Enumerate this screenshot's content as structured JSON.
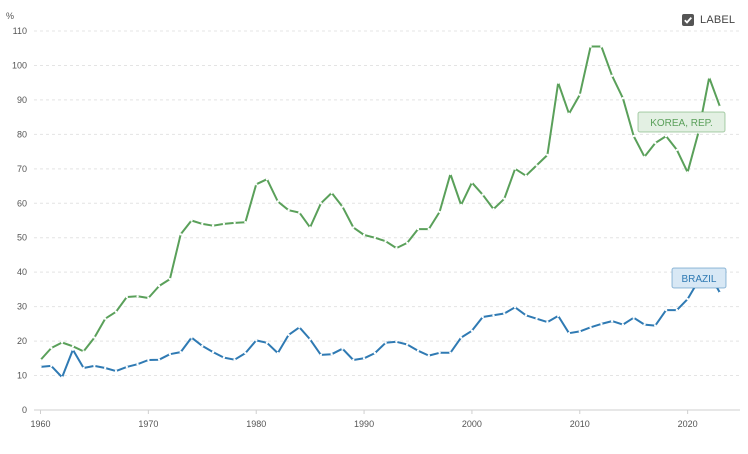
{
  "toggle": {
    "label": "LABEL",
    "checked": true
  },
  "chart_data": {
    "type": "line",
    "title": "",
    "xlabel": "",
    "ylabel": "%",
    "xlim": [
      1960,
      2023
    ],
    "ylim": [
      0,
      110
    ],
    "xticks": [
      1960,
      1970,
      1980,
      1990,
      2000,
      2010,
      2020
    ],
    "yticks": [
      0,
      10,
      20,
      30,
      40,
      50,
      60,
      70,
      80,
      90,
      100,
      110
    ],
    "grid": true,
    "x": [
      1960,
      1961,
      1962,
      1963,
      1964,
      1965,
      1966,
      1967,
      1968,
      1969,
      1970,
      1971,
      1972,
      1973,
      1974,
      1975,
      1976,
      1977,
      1978,
      1979,
      1980,
      1981,
      1982,
      1983,
      1984,
      1985,
      1986,
      1987,
      1988,
      1989,
      1990,
      1991,
      1992,
      1993,
      1994,
      1995,
      1996,
      1997,
      1998,
      1999,
      2000,
      2001,
      2002,
      2003,
      2004,
      2005,
      2006,
      2007,
      2008,
      2009,
      2010,
      2011,
      2012,
      2013,
      2014,
      2015,
      2016,
      2017,
      2018,
      2019,
      2020,
      2021,
      2022,
      2023
    ],
    "series": [
      {
        "name": "KOREA, REP.",
        "color": "#5aa05a",
        "label_fill": "#e3f0e3",
        "values": [
          14.5,
          18,
          19.6,
          18.5,
          17,
          21,
          26.5,
          28.5,
          32.8,
          33,
          32.5,
          36,
          38,
          51,
          55,
          54,
          53.5,
          54,
          54.3,
          54.5,
          65.5,
          67,
          60.5,
          58,
          57.3,
          53,
          60,
          63,
          59,
          53,
          50.8,
          50,
          49,
          47,
          48.5,
          52.5,
          52.5,
          57.5,
          68.5,
          59.5,
          66,
          62.5,
          58.3,
          61.3,
          70,
          68,
          71,
          74,
          95,
          86,
          91.5,
          105.5,
          105.5,
          97,
          90.5,
          79.5,
          73.5,
          77.5,
          79.5,
          75.5,
          69,
          80.5,
          96.5,
          88
        ]
      },
      {
        "name": "BRAZIL",
        "color": "#2f7ab3",
        "label_fill": "#d8e8f5",
        "values": [
          12.5,
          12.8,
          9.5,
          17.5,
          12.2,
          12.8,
          12.2,
          11.3,
          12.5,
          13.3,
          14.5,
          14.6,
          16.2,
          16.8,
          21,
          18.6,
          16.8,
          15.2,
          14.6,
          16.5,
          20.2,
          19.5,
          16.5,
          21.8,
          24,
          20.5,
          16,
          16.2,
          17.8,
          14.5,
          15,
          16.5,
          19.5,
          19.8,
          19,
          17.2,
          15.8,
          16.6,
          16.6,
          21,
          23,
          27,
          27.5,
          28,
          29.8,
          27.5,
          26.5,
          25.5,
          27.3,
          22.3,
          22.8,
          24,
          25,
          25.8,
          24.8,
          26.8,
          24.8,
          24.5,
          29,
          29,
          32.2,
          37.5,
          39.5,
          34
        ]
      }
    ],
    "series_labels": [
      "KOREA, REP.",
      "BRAZIL"
    ],
    "y_unit": "%"
  }
}
